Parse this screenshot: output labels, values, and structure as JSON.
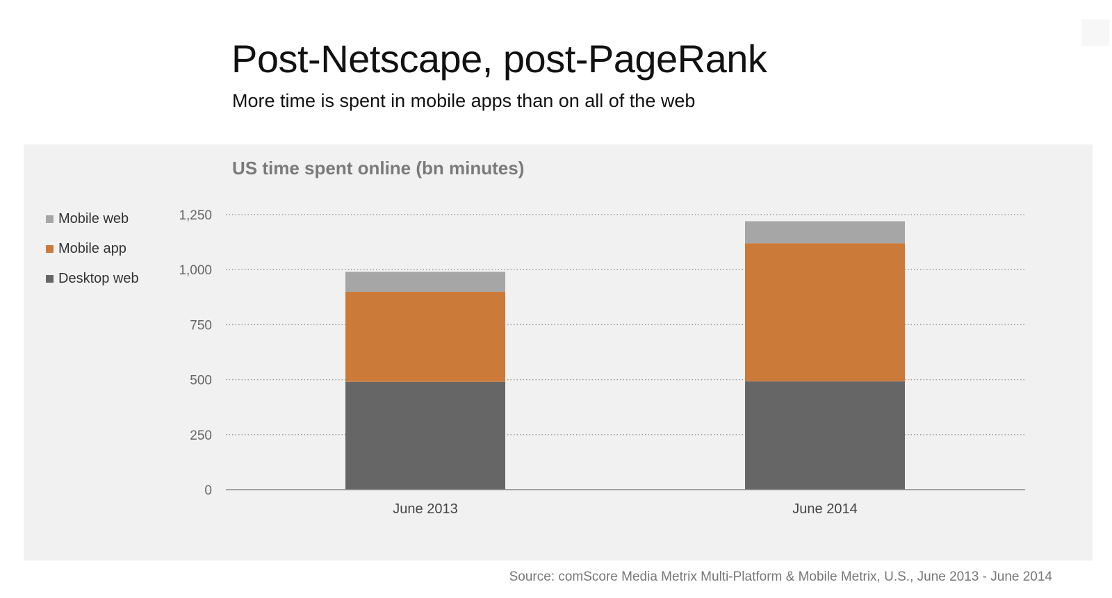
{
  "slide": {
    "title": "Post-Netscape, post-PageRank",
    "subtitle": "More time is spent in mobile apps than on all of the web",
    "source": "Source: comScore Media Metrix Multi-Platform & Mobile Metrix, U.S., June 2013 - June 2014"
  },
  "chart_data": {
    "type": "bar",
    "stacked": true,
    "title": "US time spent online (bn minutes)",
    "xlabel": "",
    "ylabel": "",
    "categories": [
      "June 2013",
      "June 2014"
    ],
    "series": [
      {
        "name": "Desktop web",
        "color": "#666666",
        "values": [
          490,
          492
        ]
      },
      {
        "name": "Mobile app",
        "color": "#cc7a3a",
        "values": [
          410,
          628
        ]
      },
      {
        "name": "Mobile web",
        "color": "#a6a6a6",
        "values": [
          90,
          100
        ]
      }
    ],
    "legend_order": [
      "Mobile web",
      "Mobile app",
      "Desktop web"
    ],
    "ylim": [
      0,
      1250
    ],
    "yticks": [
      0,
      250,
      500,
      750,
      1000,
      1250
    ],
    "ytick_labels": [
      "0",
      "250",
      "500",
      "750",
      "1,000",
      "1,250"
    ],
    "grid": true,
    "legend_position": "left"
  }
}
